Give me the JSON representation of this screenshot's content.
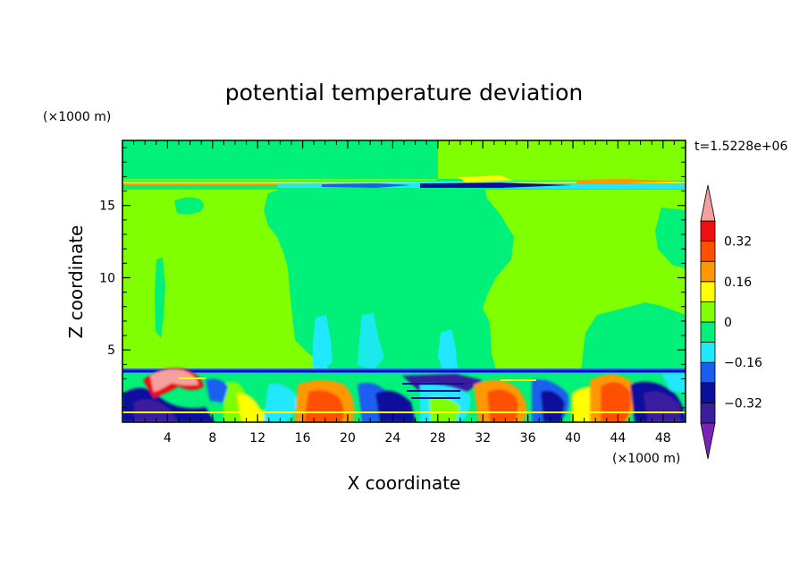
{
  "chart_data": {
    "type": "heatmap",
    "title": "potential temperature deviation",
    "time_label": "t=1.5228e+06",
    "xlabel": "X coordinate",
    "ylabel": "Z coordinate",
    "x_unit": "(×1000 m)",
    "y_unit": "(×1000 m)",
    "xlim": [
      0,
      50
    ],
    "ylim": [
      0,
      19.5
    ],
    "x_ticks": [
      4,
      8,
      12,
      16,
      20,
      24,
      28,
      32,
      36,
      40,
      44,
      48
    ],
    "y_ticks": [
      5,
      10,
      15
    ],
    "colorbar": {
      "levels": [
        -0.4,
        -0.32,
        -0.24,
        -0.16,
        -0.08,
        0,
        0.08,
        0.16,
        0.24,
        0.32,
        0.4
      ],
      "labels": [
        "0.32",
        "0.16",
        "0",
        "−0.16",
        "−0.32"
      ],
      "label_values": [
        0.32,
        0.16,
        0,
        -0.16,
        -0.32
      ],
      "colors": [
        "#7b22b8",
        "#3a1e9e",
        "#0a109e",
        "#1a5ef0",
        "#20e8ff",
        "#00f07a",
        "#80ff00",
        "#ffff00",
        "#ff9800",
        "#ff5000",
        "#ee1010",
        "#f4a0a0"
      ],
      "extend": "both"
    }
  }
}
